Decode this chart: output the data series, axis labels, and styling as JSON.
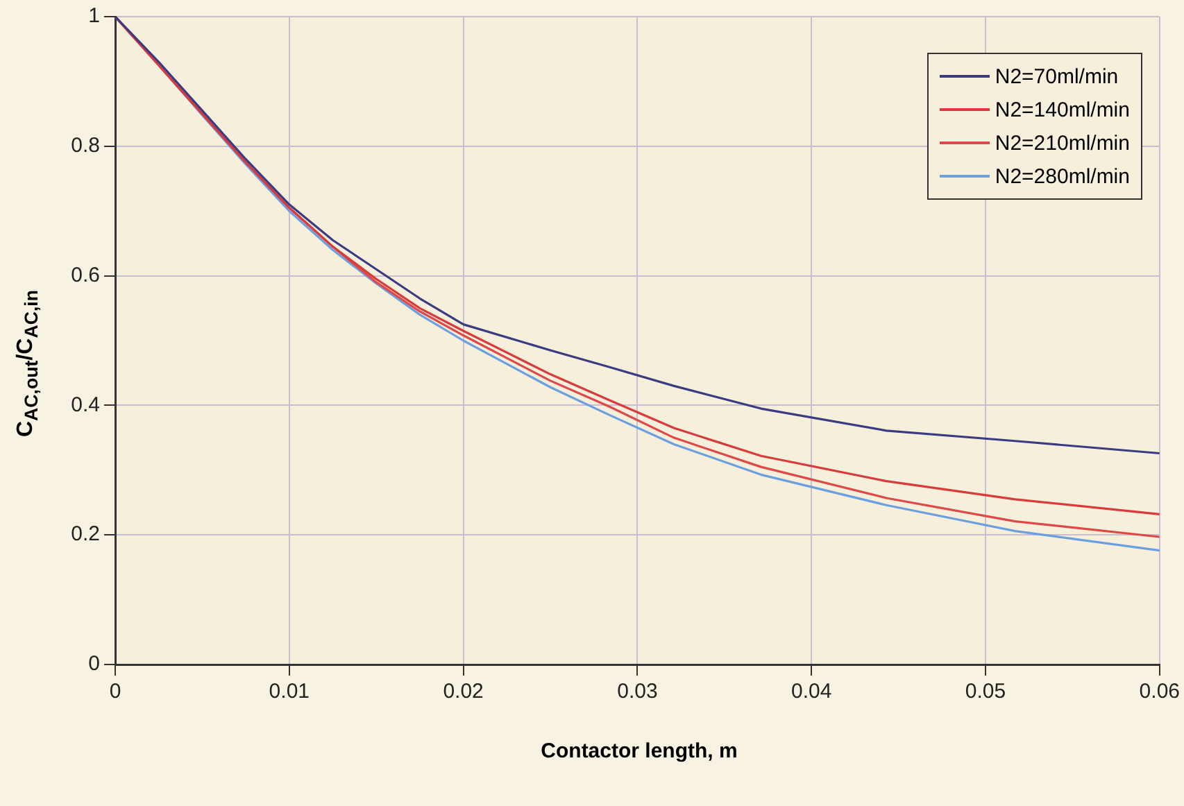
{
  "chart_data": {
    "type": "line",
    "xlabel": "Contactor length, m",
    "ylabel": "C$_{AC,out}$/C$_{AC,in}$",
    "x": [
      0,
      0.0025,
      0.005,
      0.0075,
      0.01,
      0.0125,
      0.015,
      0.0175,
      0.02,
      0.025,
      0.0284,
      0.0321,
      0.0371,
      0.0443,
      0.0517,
      0.06
    ],
    "series": [
      {
        "name": "N2=70ml/min",
        "color": "#3b3b82",
        "values": [
          1,
          0.93,
          0.855,
          0.78,
          0.71,
          0.655,
          0.61,
          0.565,
          0.525,
          0.485,
          0.459,
          0.43,
          0.395,
          0.361,
          0.345,
          0.326
        ]
      },
      {
        "name": "N2=140ml/min",
        "color": "#d93a3a",
        "values": [
          1,
          0.925,
          0.85,
          0.775,
          0.705,
          0.645,
          0.595,
          0.55,
          0.515,
          0.448,
          0.408,
          0.365,
          0.322,
          0.283,
          0.255,
          0.232
        ]
      },
      {
        "name": "N2=210ml/min",
        "color": "#e04848",
        "values": [
          1,
          0.925,
          0.85,
          0.775,
          0.705,
          0.645,
          0.59,
          0.545,
          0.508,
          0.438,
          0.398,
          0.35,
          0.305,
          0.257,
          0.221,
          0.197
        ]
      },
      {
        "name": "N2=280ml/min",
        "color": "#6aa0e0",
        "values": [
          1,
          0.925,
          0.848,
          0.772,
          0.7,
          0.64,
          0.588,
          0.54,
          0.5,
          0.428,
          0.385,
          0.34,
          0.293,
          0.246,
          0.206,
          0.176
        ]
      }
    ],
    "xlim": [
      0,
      0.06
    ],
    "xticks": [
      0,
      0.01,
      0.02,
      0.03,
      0.04,
      0.05,
      0.06
    ],
    "ylim": [
      0,
      1
    ],
    "yticks": [
      0,
      0.2,
      0.4,
      0.6,
      0.8,
      1
    ],
    "grid": true,
    "legend": "top right",
    "marker": "none",
    "line_style": "solid"
  }
}
